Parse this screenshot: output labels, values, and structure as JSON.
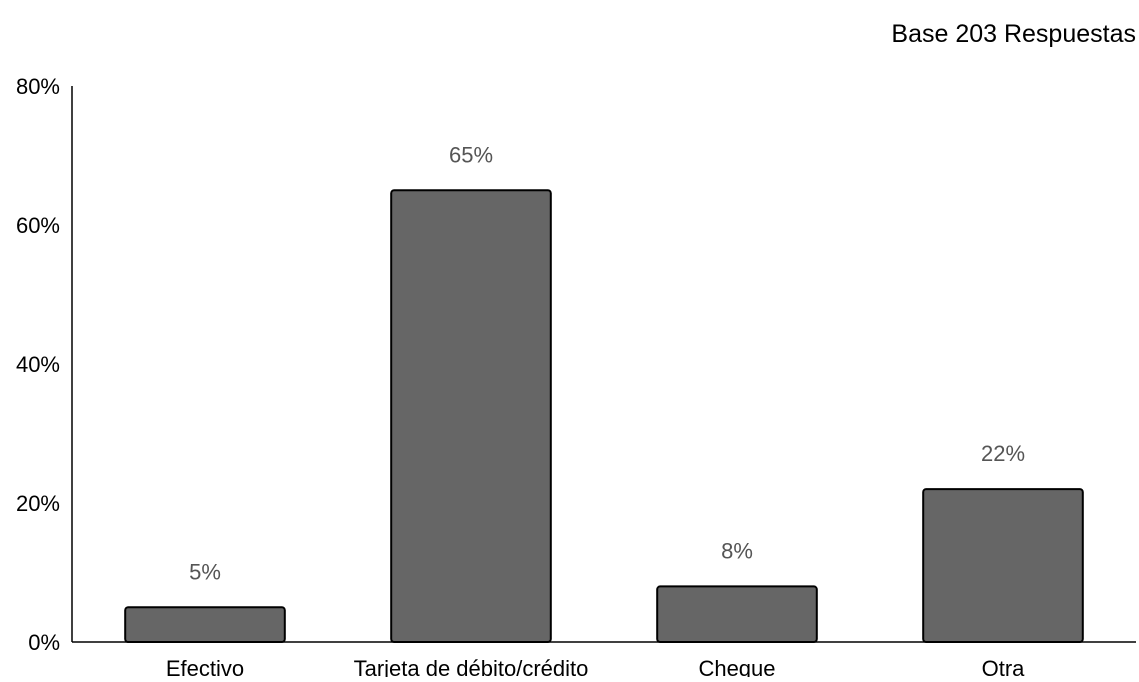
{
  "chart_data": {
    "type": "bar",
    "title": "",
    "note": "Base 203 Respuestas",
    "xlabel": "",
    "ylabel": "",
    "categories": [
      "Efectivo",
      "Tarjeta de débito/crédito",
      "Cheque",
      "Otra"
    ],
    "values": [
      5,
      65,
      8,
      22
    ],
    "data_labels": [
      "5%",
      "65%",
      "8%",
      "22%"
    ],
    "ylim": [
      0,
      80
    ],
    "yticks": [
      0,
      20,
      40,
      60,
      80
    ],
    "ytick_labels": [
      "0%",
      "20%",
      "40%",
      "60%",
      "80%"
    ],
    "grid": false,
    "legend": "none",
    "bar_color": "#666666",
    "bar_border_color": "#000000"
  }
}
